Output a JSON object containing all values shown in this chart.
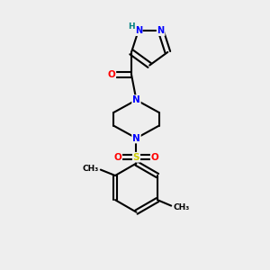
{
  "bg_color": "#eeeeee",
  "atom_colors": {
    "C": "#000000",
    "N": "#0000ff",
    "O": "#ff0000",
    "S": "#cccc00",
    "H": "#008080"
  },
  "figsize": [
    3.0,
    3.0
  ],
  "dpi": 100
}
